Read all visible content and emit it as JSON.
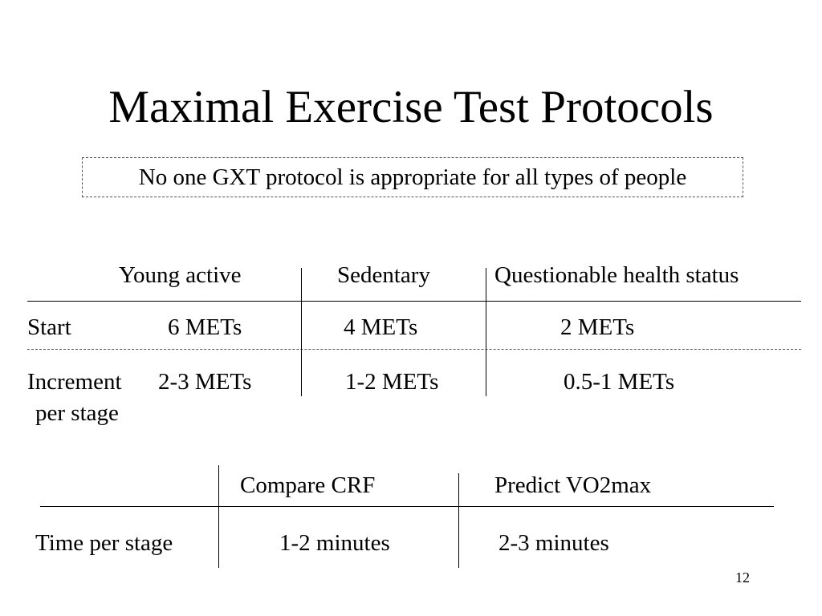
{
  "slide": {
    "title": "Maximal Exercise Test Protocols",
    "subtitle": "No one GXT protocol is appropriate for all types of people",
    "page_number": "12"
  },
  "table1": {
    "columns": [
      "Young active",
      "Sedentary",
      "Questionable health status"
    ],
    "rows": [
      {
        "label": "Start",
        "values": [
          "6 METs",
          "4 METs",
          "2 METs"
        ]
      },
      {
        "label_line1": "Increment",
        "label_line2": "per stage",
        "values": [
          "2-3 METs",
          "1-2 METs",
          "0.5-1 METs"
        ]
      }
    ]
  },
  "table2": {
    "columns": [
      "Compare CRF",
      "Predict VO2max"
    ],
    "rows": [
      {
        "label": "Time per stage",
        "values": [
          "1-2 minutes",
          "2-3 minutes"
        ]
      }
    ]
  }
}
